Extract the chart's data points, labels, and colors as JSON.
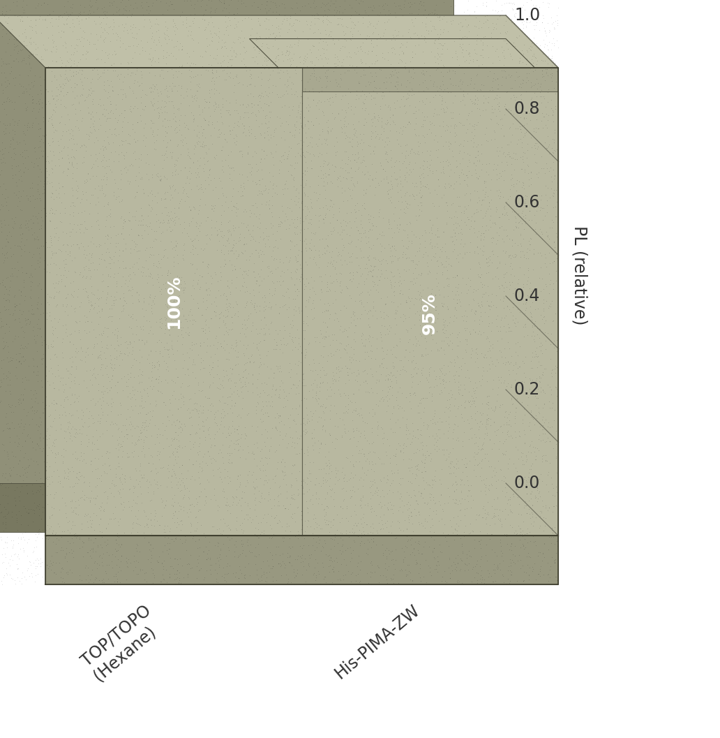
{
  "categories": [
    "TOP/TOPO\n(Hexane)",
    "His-PIMA-ZW"
  ],
  "values": [
    1.0,
    0.95
  ],
  "bar_labels": [
    "100%",
    "95%"
  ],
  "chart_face_color": "#a8a890",
  "chart_dark_color": "#888870",
  "chart_light_color": "#c0c0a8",
  "bar_face_color": "#b8b8a0",
  "bar_side_color": "#989880",
  "bar_top_color": "#d0d0b8",
  "floor_color": "#989880",
  "floor_dark_color": "#787860",
  "shadow_color": "#909078",
  "bg_color": "#ffffff",
  "ylabel": "PL (relative)",
  "yticks": [
    0.0,
    0.2,
    0.4,
    0.6,
    0.8,
    1.0
  ],
  "label_color": "white",
  "grid_color": "#707060",
  "tick_color": "#333333",
  "label_fontsize": 18,
  "tick_fontsize": 17,
  "ylabel_fontsize": 17
}
